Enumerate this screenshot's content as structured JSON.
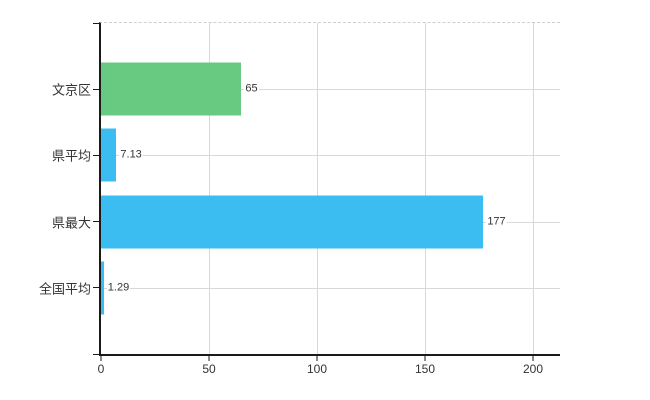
{
  "chart_data": {
    "type": "bar",
    "orientation": "horizontal",
    "categories": [
      "文京区",
      "県平均",
      "県最大",
      "全国平均"
    ],
    "values": [
      65,
      7.13,
      177,
      1.29
    ],
    "value_labels": [
      "65",
      "7.13",
      "177",
      "1.29"
    ],
    "bar_colors": [
      "#67ca80",
      "#3cbdf2",
      "#3cbdf2",
      "#3cbdf2"
    ],
    "xlim": [
      0,
      212.5
    ],
    "x_ticks": [
      0,
      50,
      100,
      150,
      200
    ],
    "x_tick_labels": [
      "0",
      "50",
      "100",
      "150",
      "200"
    ],
    "grid": true,
    "legend_position": "none",
    "title": ""
  },
  "style": {
    "bar_green": "#67ca80",
    "bar_blue": "#3cbdf2",
    "grid_color": "#d8d8d8",
    "axis_color": "#1a1a1a",
    "text_color": "#333333",
    "background": "#ffffff"
  }
}
